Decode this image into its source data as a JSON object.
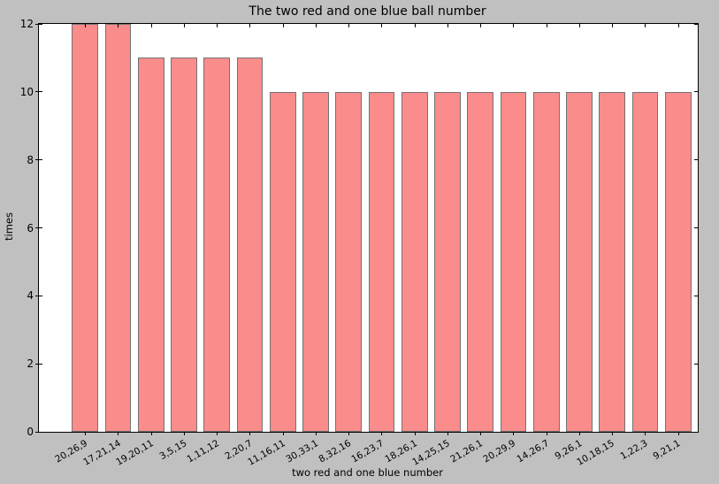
{
  "chart_data": {
    "type": "bar",
    "title": "The two red and one blue ball number",
    "xlabel": "two red and one blue number",
    "ylabel": "times",
    "categories": [
      "20,26,9",
      "17,21,14",
      "19,20,11",
      "3,5,15",
      "1,11,12",
      "2,20,7",
      "11,16,11",
      "30,33,1",
      "8,32,16",
      "16,23,7",
      "18,26,1",
      "14,25,15",
      "21,26,1",
      "20,29,9",
      "14,26,7",
      "9,26,1",
      "10,18,15",
      "1,22,3",
      "9,21,1"
    ],
    "values": [
      12,
      12,
      11,
      11,
      11,
      11,
      10,
      10,
      10,
      10,
      10,
      10,
      10,
      10,
      10,
      10,
      10,
      10,
      10
    ],
    "ylim": [
      0,
      12
    ],
    "yticks": [
      0,
      2,
      4,
      6,
      8,
      10,
      12
    ],
    "grid": false,
    "legend": "none",
    "bar_width_fraction": 0.8,
    "xtick_rotation_deg": 30,
    "colors": {
      "figure_background": "#c0c0c0",
      "plot_background": "#ffffff",
      "bar_fill": "#fa8c8c",
      "bar_edge": "#737373",
      "axis": "#000000",
      "text": "#000000"
    }
  }
}
